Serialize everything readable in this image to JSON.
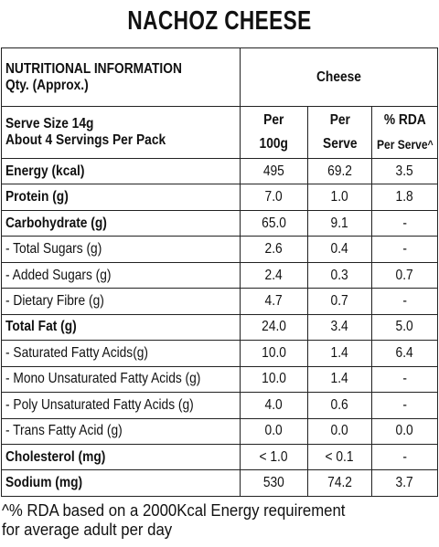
{
  "title": "NACHOZ CHEESE",
  "header": {
    "info_line1": "NUTRITIONAL INFORMATION",
    "info_line2": "Qty. (Approx.)",
    "product_column": "Cheese"
  },
  "subheader": {
    "serve_size": "Serve Size 14g",
    "servings_per_pack": "About 4 Servings Per Pack",
    "per_100g_line1": "Per",
    "per_100g_line2": "100g",
    "per_serve_line1": "Per",
    "per_serve_line2": "Serve",
    "rda_line1": "% RDA",
    "rda_line2": "Per Serve",
    "rda_caret": "^"
  },
  "rows": [
    {
      "label": "Energy (kcal)",
      "per100": "495",
      "perServe": "69.2",
      "rda": "3.5"
    },
    {
      "label": "Protein (g)",
      "per100": "7.0",
      "perServe": "1.0",
      "rda": "1.8"
    },
    {
      "label": "Carbohydrate (g)",
      "per100": "65.0",
      "perServe": "9.1",
      "rda": "-"
    },
    {
      "label": "- Total Sugars (g)",
      "per100": "2.6",
      "perServe": "0.4",
      "rda": "-"
    },
    {
      "label": "- Added Sugars (g)",
      "per100": "2.4",
      "perServe": "0.3",
      "rda": "0.7"
    },
    {
      "label": "- Dietary Fibre (g)",
      "per100": "4.7",
      "perServe": "0.7",
      "rda": "-"
    },
    {
      "label": "Total Fat (g)",
      "per100": "24.0",
      "perServe": "3.4",
      "rda": "5.0"
    },
    {
      "label": "- Saturated Fatty Acids(g)",
      "per100": "10.0",
      "perServe": "1.4",
      "rda": "6.4"
    },
    {
      "label": "- Mono Unsaturated Fatty Acids (g)",
      "per100": "10.0",
      "perServe": "1.4",
      "rda": "-"
    },
    {
      "label": "- Poly Unsaturated Fatty Acids (g)",
      "per100": "4.0",
      "perServe": "0.6",
      "rda": "-"
    },
    {
      "label": "- Trans Fatty Acid (g)",
      "per100": "0.0",
      "perServe": "0.0",
      "rda": "0.0"
    },
    {
      "label": "Cholesterol (mg)",
      "per100": "< 1.0",
      "perServe": "< 0.1",
      "rda": "-"
    },
    {
      "label": "Sodium (mg)",
      "per100": "530",
      "perServe": "74.2",
      "rda": "3.7"
    }
  ],
  "footnote": {
    "line1": "^% RDA based on a 2000Kcal Energy requirement",
    "line2": "for average adult per day"
  }
}
